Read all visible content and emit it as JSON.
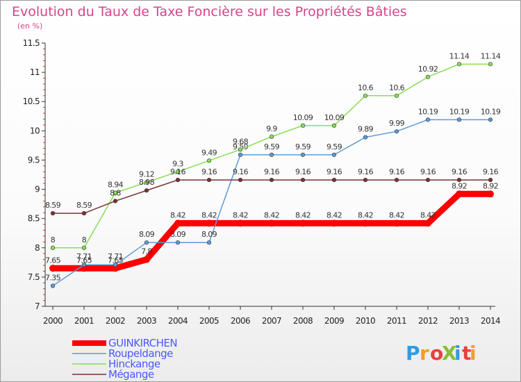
{
  "chart_data": {
    "type": "line",
    "title": "Evolution du Taux de Taxe Foncière sur les Propriétés Bâties",
    "subtitle": "(en %)",
    "x": [
      "2000",
      "2001",
      "2002",
      "2003",
      "2004",
      "2005",
      "2006",
      "2007",
      "2008",
      "2009",
      "2010",
      "2011",
      "2012",
      "2013",
      "2014"
    ],
    "ylim": [
      7,
      11.5
    ],
    "yticks": [
      "7",
      "7.5",
      "8",
      "8.5",
      "9",
      "9.5",
      "10",
      "10.5",
      "11",
      "11.5"
    ],
    "grid": false,
    "legend_position": "bottom-left",
    "series": [
      {
        "name": "GUINKIRCHEN",
        "color": "#ff0000",
        "values": [
          7.65,
          7.65,
          7.65,
          7.8,
          8.42,
          8.42,
          8.42,
          8.42,
          8.42,
          8.42,
          8.42,
          8.42,
          8.42,
          8.92,
          8.92
        ],
        "labels": [
          "7.65",
          "7.65",
          "7.65",
          "7.8",
          "8.42",
          "8.42",
          "8.42",
          "8.42",
          "8.42",
          "8.42",
          "8.42",
          "8.42",
          "8.42",
          "8.92",
          "8.92"
        ]
      },
      {
        "name": "Roupeldange",
        "color": "#5b9bd5",
        "values": [
          7.35,
          7.71,
          7.71,
          8.09,
          8.09,
          8.09,
          9.59,
          9.59,
          9.59,
          9.59,
          9.89,
          9.99,
          10.19,
          10.19,
          10.19
        ],
        "labels": [
          "7.35",
          "7.71",
          "7.71",
          "8.09",
          "8.09",
          "8.09",
          "9.59",
          "9.59",
          "9.59",
          "9.59",
          "9.89",
          "9.99",
          "10.19",
          "10.19",
          "10.19"
        ]
      },
      {
        "name": "Hinckange",
        "color": "#88dd55",
        "values": [
          8,
          8,
          8.94,
          9.12,
          9.3,
          9.49,
          9.68,
          9.9,
          10.09,
          10.09,
          10.6,
          10.6,
          10.92,
          11.14,
          11.14
        ],
        "labels": [
          "8",
          "8",
          "8.94",
          "9.12",
          "9.3",
          "9.49",
          "9.68",
          "9.9",
          "10.09",
          "10.09",
          "10.6",
          "10.6",
          "10.92",
          "11.14",
          "11.14"
        ]
      },
      {
        "name": "Mégange",
        "color": "#7a3333",
        "values": [
          8.59,
          8.59,
          8.8,
          8.98,
          9.16,
          9.16,
          9.16,
          9.16,
          9.16,
          9.16,
          9.16,
          9.16,
          9.16,
          9.16,
          9.16
        ],
        "labels": [
          "8.59",
          "8.59",
          "8.8",
          "8.98",
          "9.16",
          "9.16",
          "9.16",
          "9.16",
          "9.16",
          "9.16",
          "9.16",
          "9.16",
          "9.16",
          "9.16",
          "9.16"
        ]
      }
    ]
  },
  "logo": {
    "text": "ProXiti",
    "colors": [
      "#2f9be0",
      "#f0a020",
      "#e84040",
      "#88c030",
      "#2f9be0",
      "#e84040",
      "#f0a020"
    ]
  }
}
